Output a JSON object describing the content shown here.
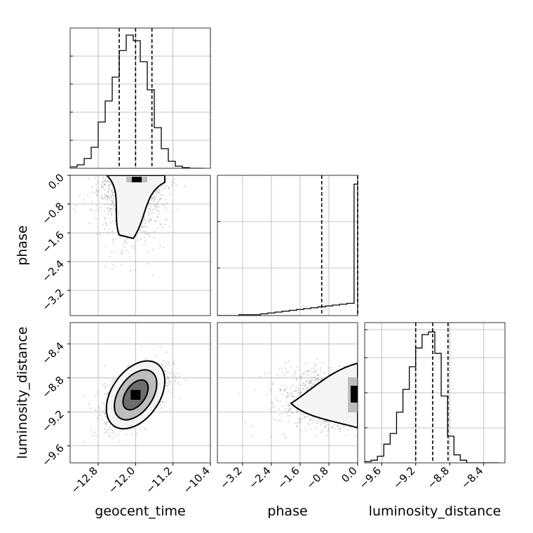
{
  "chart_data": {
    "type": "corner",
    "parameters": [
      "geocent_time",
      "phase",
      "luminosity_distance"
    ],
    "axes": {
      "geocent_time": {
        "label": "geocent_time",
        "range": [
          -13.4,
          -10.4
        ],
        "ticks": [
          -12.8,
          -12.0,
          -11.2,
          -10.4
        ],
        "tick_labels": [
          "−12.8",
          "−12.0",
          "−11.2",
          "−10.4"
        ]
      },
      "phase": {
        "label": "phase",
        "range": [
          -3.9,
          0.0
        ],
        "ticks": [
          -3.2,
          -2.4,
          -1.6,
          -0.8,
          0.0
        ],
        "tick_labels": [
          "−3.2",
          "−2.4",
          "−1.6",
          "−0.8",
          "0.0"
        ]
      },
      "luminosity_distance": {
        "label": "luminosity_distance",
        "range": [
          -9.8,
          -8.15
        ],
        "ticks": [
          -9.6,
          -9.2,
          -8.8,
          -8.4
        ],
        "tick_labels": [
          "−9.6",
          "−9.2",
          "−8.8",
          "−8.4"
        ]
      }
    },
    "histograms": [
      {
        "param": "geocent_time",
        "bin_edges": [
          -13.4,
          -13.25,
          -13.1,
          -12.95,
          -12.8,
          -12.65,
          -12.5,
          -12.35,
          -12.2,
          -12.05,
          -11.9,
          -11.75,
          -11.6,
          -11.45,
          -11.3,
          -11.15,
          -11.0,
          -10.85,
          -10.7,
          -10.55
        ],
        "counts": [
          2,
          5,
          14,
          30,
          66,
          96,
          130,
          168,
          190,
          182,
          152,
          112,
          58,
          28,
          10,
          3,
          1,
          0,
          0
        ],
        "quantiles": [
          -12.35,
          -12.0,
          -11.65
        ],
        "max_count": 200,
        "grid_y": [
          0.2,
          0.4,
          0.6,
          0.8
        ]
      },
      {
        "param": "phase",
        "bin_edges": [
          -3.9,
          -3.7,
          -3.5,
          -3.3,
          -3.1,
          -2.9,
          -2.7,
          -2.5,
          -2.3,
          -2.1,
          -1.9,
          -1.7,
          -1.5,
          -1.3,
          -1.1,
          -0.9,
          -0.7,
          -0.5,
          -0.3,
          -0.1,
          0.0
        ],
        "counts": [
          0,
          0,
          0,
          1,
          1,
          1,
          2,
          3,
          4,
          5,
          6,
          7,
          8,
          9,
          10,
          11,
          12,
          13,
          14,
          150
        ],
        "quantiles": [
          -1.0,
          0.0
        ],
        "max_count": 160,
        "grid_y": [
          0.34,
          0.67
        ]
      },
      {
        "param": "luminosity_distance",
        "bin_edges": [
          -9.8,
          -9.725,
          -9.65,
          -9.575,
          -9.5,
          -9.425,
          -9.35,
          -9.275,
          -9.2,
          -9.125,
          -9.05,
          -8.975,
          -8.9,
          -8.825,
          -8.75,
          -8.675,
          -8.6,
          -8.525,
          -8.45,
          -8.375,
          -8.3,
          -8.225
        ],
        "counts": [
          1,
          2,
          5,
          14,
          22,
          38,
          55,
          72,
          86,
          96,
          98,
          82,
          50,
          20,
          6,
          2,
          0,
          0,
          0,
          0,
          0
        ],
        "quantiles": [
          -9.2,
          -9.0,
          -8.82
        ],
        "max_count": 105,
        "grid_y": [
          0.25,
          0.5,
          0.75,
          0.95
        ]
      }
    ],
    "joint": [
      {
        "x": "geocent_time",
        "y": "phase",
        "mean": [
          -12.1,
          -0.5
        ],
        "spread": [
          0.35,
          0.6
        ],
        "n_points": 1100,
        "peak": [
          -12.0,
          -0.05
        ]
      },
      {
        "x": "geocent_time",
        "y": "luminosity_distance",
        "mean": [
          -12.0,
          -9.0
        ],
        "spread": [
          0.33,
          0.18
        ],
        "correlation": 0.55,
        "n_points": 1400,
        "peak": [
          -12.0,
          -9.0
        ]
      },
      {
        "x": "phase",
        "y": "luminosity_distance",
        "mean": [
          -0.6,
          -9.05
        ],
        "spread": [
          0.75,
          0.16
        ],
        "correlation": 0.4,
        "n_points": 1300,
        "peak": [
          0.0,
          -9.0
        ]
      }
    ],
    "xlabels": [
      "geocent_time",
      "phase",
      "luminosity_distance"
    ],
    "ylabels": [
      "phase",
      "luminosity_distance"
    ],
    "colors": {
      "line": "#000000",
      "grid": "#b0b0b0",
      "scatter": "#999999"
    },
    "grid": true
  }
}
